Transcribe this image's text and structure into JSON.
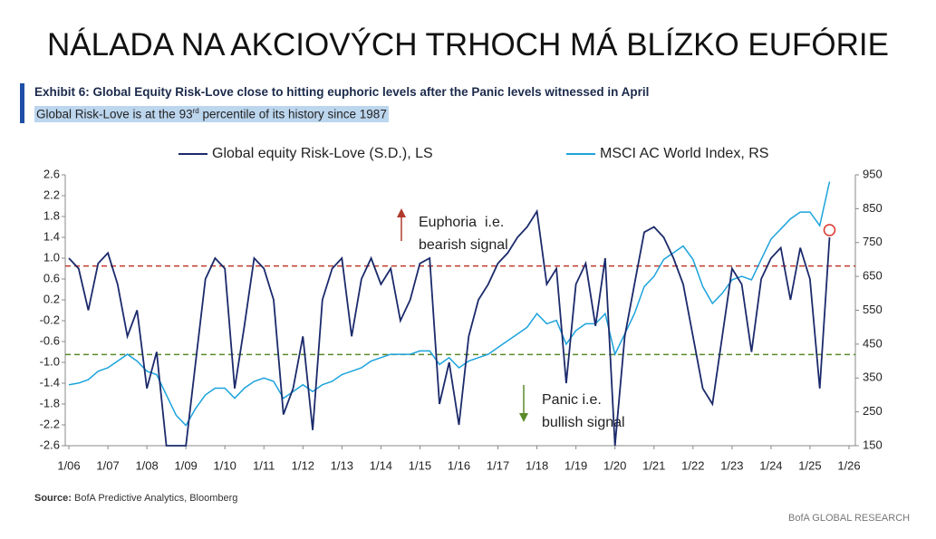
{
  "header": {
    "title": "NÁLADA NA AKCIOVÝCH TRHOCH MÁ BLÍZKO EUFÓRIE"
  },
  "chart_data": {
    "type": "line",
    "exhibit_title": "Exhibit 6: Global Equity Risk-Love close to hitting euphoric levels after the Panic levels witnessed in April",
    "subtitle": {
      "text": "Global Risk-Love is at the 93",
      "superscript": "rd",
      "rest": " percentile of its history since 1987"
    },
    "x": [
      "2006-01",
      "2006-04",
      "2006-07",
      "2006-10",
      "2007-01",
      "2007-04",
      "2007-07",
      "2007-10",
      "2008-01",
      "2008-04",
      "2008-07",
      "2008-10",
      "2009-01",
      "2009-04",
      "2009-07",
      "2009-10",
      "2010-01",
      "2010-04",
      "2010-07",
      "2010-10",
      "2011-01",
      "2011-04",
      "2011-07",
      "2011-10",
      "2012-01",
      "2012-04",
      "2012-07",
      "2012-10",
      "2013-01",
      "2013-04",
      "2013-07",
      "2013-10",
      "2014-01",
      "2014-04",
      "2014-07",
      "2014-10",
      "2015-01",
      "2015-04",
      "2015-07",
      "2015-10",
      "2016-01",
      "2016-04",
      "2016-07",
      "2016-10",
      "2017-01",
      "2017-04",
      "2017-07",
      "2017-10",
      "2018-01",
      "2018-04",
      "2018-07",
      "2018-10",
      "2019-01",
      "2019-04",
      "2019-07",
      "2019-10",
      "2020-01",
      "2020-04",
      "2020-07",
      "2020-10",
      "2021-01",
      "2021-04",
      "2021-07",
      "2021-10",
      "2022-01",
      "2022-04",
      "2022-07",
      "2022-10",
      "2023-01",
      "2023-04",
      "2023-07",
      "2023-10",
      "2024-01",
      "2024-04",
      "2024-07",
      "2024-10",
      "2025-01",
      "2025-04",
      "2025-07"
    ],
    "series": [
      {
        "name": "Global equity Risk-Love (S.D.), LS",
        "color": "#1b2a6b",
        "axis": "y",
        "values": [
          1.0,
          0.8,
          0.0,
          0.9,
          1.1,
          0.5,
          -0.5,
          0.0,
          -1.5,
          -0.8,
          -2.6,
          -2.6,
          -2.6,
          -1.0,
          0.6,
          1.0,
          0.8,
          -1.5,
          -0.3,
          1.0,
          0.8,
          0.2,
          -2.0,
          -1.5,
          -0.5,
          -2.3,
          0.2,
          0.8,
          1.0,
          -0.5,
          0.6,
          1.0,
          0.5,
          0.8,
          -0.2,
          0.2,
          0.9,
          1.0,
          -1.8,
          -1.0,
          -2.2,
          -0.5,
          0.2,
          0.5,
          0.9,
          1.1,
          1.4,
          1.6,
          1.9,
          0.5,
          0.8,
          -1.4,
          0.5,
          0.9,
          -0.3,
          1.0,
          -2.6,
          -0.5,
          0.5,
          1.5,
          1.6,
          1.4,
          1.0,
          0.5,
          -0.5,
          -1.5,
          -1.8,
          -0.5,
          0.8,
          0.5,
          -0.8,
          0.6,
          1.0,
          1.2,
          0.2,
          1.2,
          0.6,
          -1.5,
          1.4
        ]
      },
      {
        "name": "MSCI AC World Index, RS",
        "color": "#1ca3dc",
        "axis": "y2",
        "values": [
          330,
          335,
          345,
          370,
          380,
          400,
          420,
          400,
          370,
          360,
          300,
          240,
          210,
          260,
          300,
          320,
          320,
          290,
          320,
          340,
          350,
          340,
          290,
          310,
          330,
          310,
          330,
          340,
          360,
          370,
          380,
          400,
          410,
          420,
          420,
          420,
          430,
          430,
          390,
          410,
          380,
          400,
          410,
          420,
          440,
          460,
          480,
          500,
          540,
          510,
          520,
          450,
          490,
          510,
          510,
          540,
          420,
          480,
          540,
          620,
          650,
          700,
          720,
          740,
          700,
          620,
          570,
          600,
          640,
          650,
          640,
          700,
          760,
          790,
          820,
          840,
          840,
          800,
          930
        ]
      }
    ],
    "xlim": [
      "2006-01",
      "2026-01"
    ],
    "xticks": [
      {
        "value": "2006-01",
        "label": "1/06"
      },
      {
        "value": "2007-01",
        "label": "1/07"
      },
      {
        "value": "2008-01",
        "label": "1/08"
      },
      {
        "value": "2009-01",
        "label": "1/09"
      },
      {
        "value": "2010-01",
        "label": "1/10"
      },
      {
        "value": "2011-01",
        "label": "1/11"
      },
      {
        "value": "2012-01",
        "label": "1/12"
      },
      {
        "value": "2013-01",
        "label": "1/13"
      },
      {
        "value": "2014-01",
        "label": "1/14"
      },
      {
        "value": "2015-01",
        "label": "1/15"
      },
      {
        "value": "2016-01",
        "label": "1/16"
      },
      {
        "value": "2017-01",
        "label": "1/17"
      },
      {
        "value": "2018-01",
        "label": "1/18"
      },
      {
        "value": "2019-01",
        "label": "1/19"
      },
      {
        "value": "2020-01",
        "label": "1/20"
      },
      {
        "value": "2021-01",
        "label": "1/21"
      },
      {
        "value": "2022-01",
        "label": "1/22"
      },
      {
        "value": "2023-01",
        "label": "1/23"
      },
      {
        "value": "2024-01",
        "label": "1/24"
      },
      {
        "value": "2025-01",
        "label": "1/25"
      },
      {
        "value": "2026-01",
        "label": "1/26"
      }
    ],
    "ylim": [
      -2.6,
      2.6
    ],
    "yticks": [
      2.6,
      2.2,
      1.8,
      1.4,
      {
        "value": 1,
        "label": "1.0"
      },
      0.6,
      0.2,
      -0.2,
      -0.6,
      {
        "value": -1,
        "label": "-1.0"
      },
      -1.4,
      -1.8,
      -2.2,
      -2.6
    ],
    "y2lim": [
      150,
      950
    ],
    "y2ticks": [
      950,
      850,
      750,
      650,
      550,
      450,
      350,
      250,
      150
    ],
    "thresholds": [
      {
        "value": 0.85,
        "color": "#c0392b"
      },
      {
        "value": -0.85,
        "color": "#5a8a2a"
      }
    ],
    "annotations": {
      "euphoria": [
        "Euphoria  i.e.",
        "bearish signal"
      ],
      "panic": [
        "Panic i.e.",
        "bullish signal"
      ]
    },
    "source": {
      "label": "Source:",
      "text": "BofA Predictive Analytics, Bloomberg"
    },
    "footer": "BofA GLOBAL RESEARCH"
  }
}
